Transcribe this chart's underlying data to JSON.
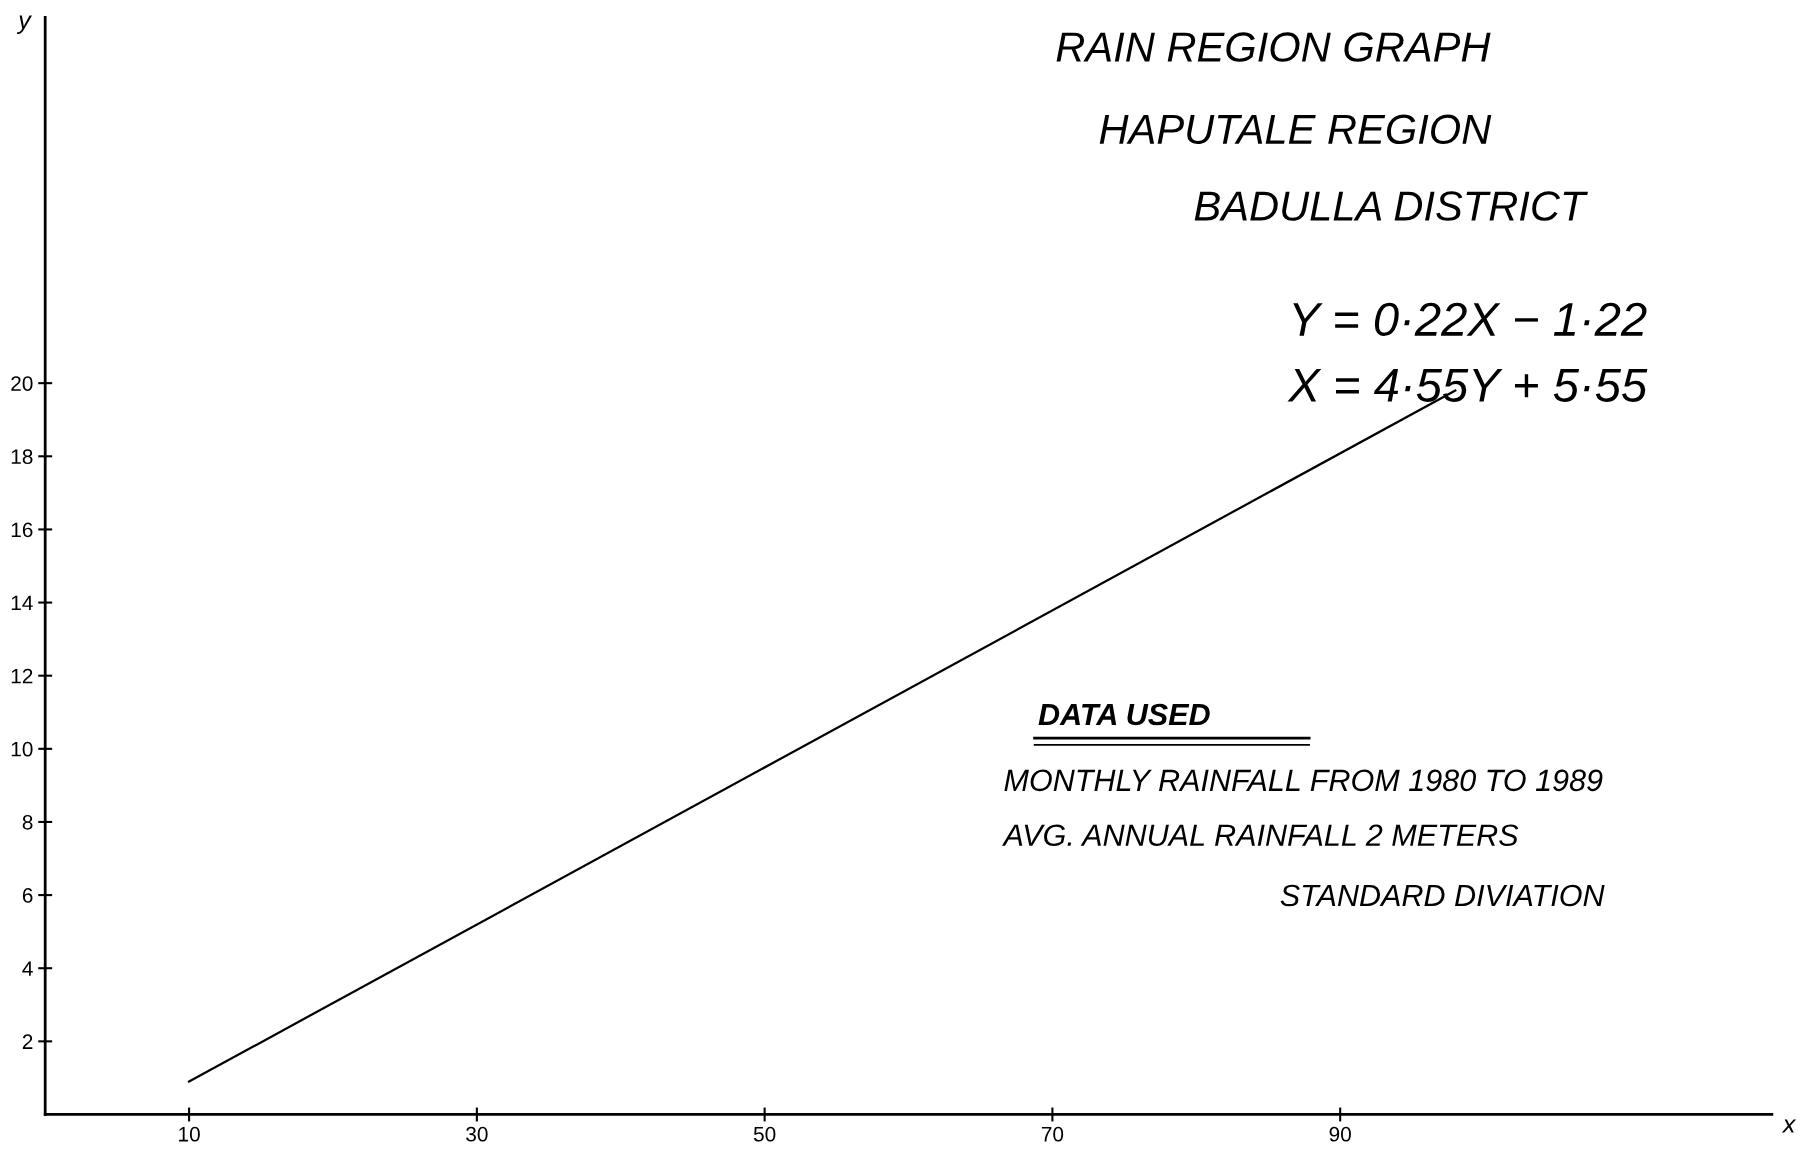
{
  "chart_data": {
    "type": "line",
    "title": "RAIN REGION GRAPH",
    "subtitle": "HAPUTALE REGION",
    "xlabel": "x",
    "ylabel": "y",
    "x": [
      10,
      98
    ],
    "series": [
      {
        "color": "#000000",
        "values": [
          0.9,
          19.8
        ]
      }
    ],
    "xlim": [
      0,
      120
    ],
    "ylim": [
      0,
      30
    ],
    "xticks": [
      10,
      30,
      50,
      70,
      90
    ],
    "yticks": [
      2,
      4,
      6,
      8,
      10,
      12,
      14,
      16,
      18,
      20
    ],
    "grid": false,
    "legend": false,
    "marker": "none",
    "line_style": "solid",
    "annotations": [
      "BADULLA DISTRICT",
      "Y = 0·22X − 1·22",
      "X = 4·55Y + 5·55",
      "DATA USED",
      "MONTHLY RAINFALL FROM 1980 TO 1989",
      "AVG. ANNUAL RAINFALL 2 METERS",
      "STANDARD DIVIATION"
    ]
  }
}
